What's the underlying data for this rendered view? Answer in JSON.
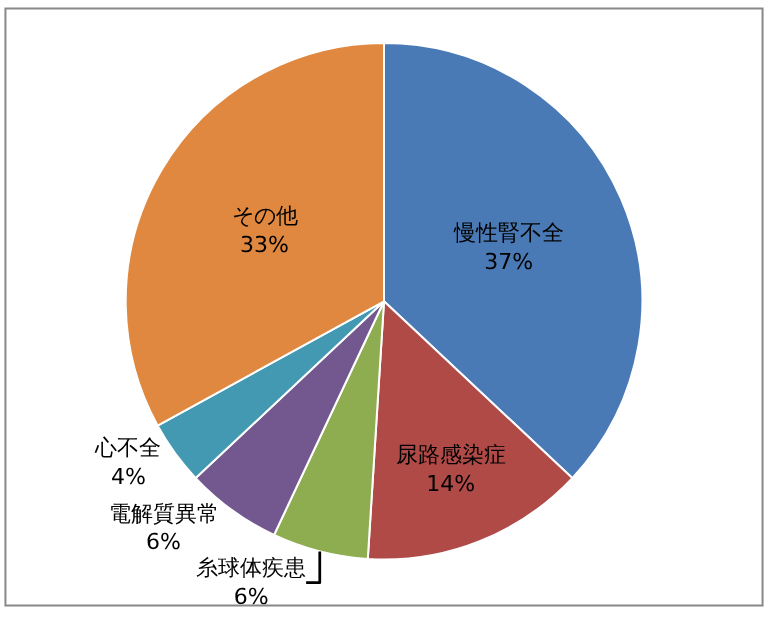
{
  "chart_data": {
    "type": "pie",
    "categories": [
      "慢性腎不全",
      "尿路感染症",
      "糸球体疾患",
      "電解質異常",
      "心不全",
      "その他"
    ],
    "values": [
      37,
      14,
      6,
      6,
      4,
      33
    ],
    "value_labels": [
      "37%",
      "14%",
      "6%",
      "6%",
      "4%",
      "33%"
    ],
    "colors": [
      "#4a7ab5",
      "#b04a47",
      "#8ead50",
      "#735890",
      "#4399b2",
      "#e0883f"
    ],
    "legend": false
  }
}
